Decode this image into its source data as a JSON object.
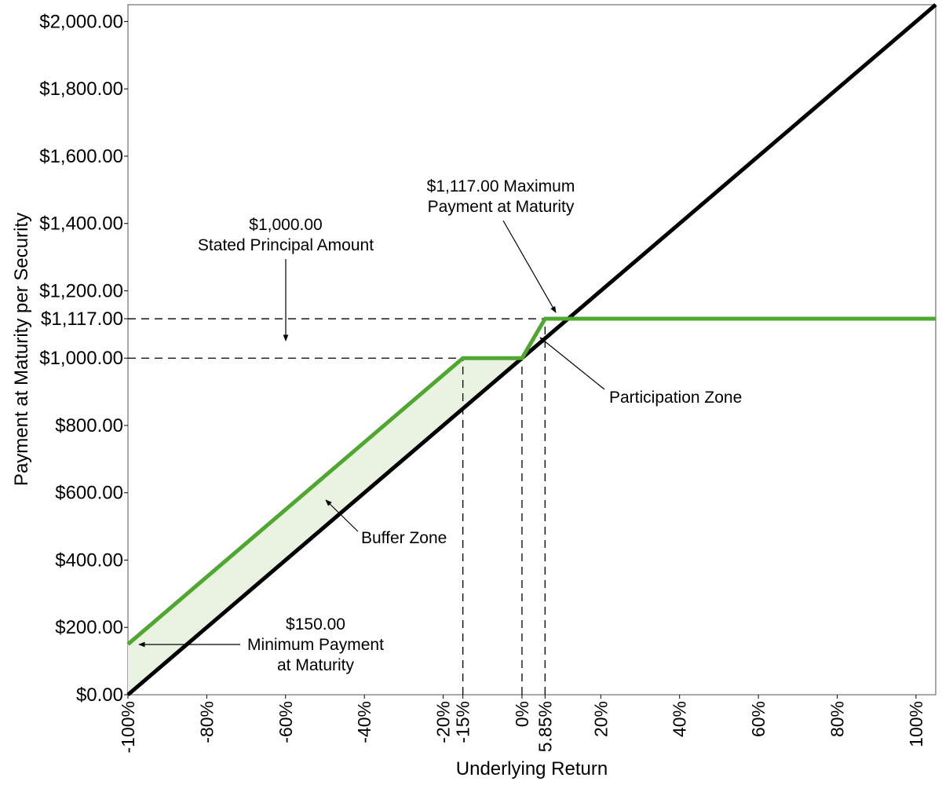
{
  "chart_data": {
    "type": "line",
    "title": "",
    "xlabel": "Underlying Return",
    "ylabel": "Payment at Maturity per Security",
    "xlim": [
      -100,
      105
    ],
    "ylim": [
      0,
      2050
    ],
    "grid": false,
    "legend": "none",
    "x_ticks": [
      {
        "value": -100,
        "label": "-100%"
      },
      {
        "value": -80,
        "label": "-80%"
      },
      {
        "value": -60,
        "label": "-60%"
      },
      {
        "value": -40,
        "label": "-40%"
      },
      {
        "value": -20,
        "label": "-20%"
      },
      {
        "value": -15,
        "label": "-15%"
      },
      {
        "value": 0,
        "label": "0%"
      },
      {
        "value": 5.85,
        "label": "5.85%"
      },
      {
        "value": 20,
        "label": "20%"
      },
      {
        "value": 40,
        "label": "40%"
      },
      {
        "value": 60,
        "label": "60%"
      },
      {
        "value": 80,
        "label": "80%"
      },
      {
        "value": 100,
        "label": "100%"
      }
    ],
    "y_ticks": [
      {
        "value": 0,
        "label": "$0.00"
      },
      {
        "value": 200,
        "label": "$200.00"
      },
      {
        "value": 400,
        "label": "$400.00"
      },
      {
        "value": 600,
        "label": "$600.00"
      },
      {
        "value": 800,
        "label": "$800.00"
      },
      {
        "value": 1000,
        "label": "$1,000.00"
      },
      {
        "value": 1117,
        "label": "$1,117.00"
      },
      {
        "value": 1200,
        "label": "$1,200.00"
      },
      {
        "value": 1400,
        "label": "$1,400.00"
      },
      {
        "value": 1600,
        "label": "$1,600.00"
      },
      {
        "value": 1800,
        "label": "$1,800.00"
      },
      {
        "value": 2000,
        "label": "$2,000.00"
      }
    ],
    "series": [
      {
        "color": "#000000",
        "x": [
          -100,
          105
        ],
        "y": [
          0,
          2050
        ]
      },
      {
        "color": "#4ea72e",
        "x": [
          -100,
          -15,
          0,
          5.85,
          105
        ],
        "y": [
          150,
          1000,
          1000,
          1117,
          1117
        ]
      }
    ],
    "buffer_fill": {
      "color": "#eaf3e2",
      "x": [
        -100,
        -15,
        0
      ],
      "upper": [
        150,
        1000,
        1000
      ],
      "lower": [
        0,
        850,
        1000
      ]
    },
    "reference_lines": {
      "horizontal": [
        1000,
        1117
      ],
      "vertical": [
        -15,
        0,
        5.85
      ]
    },
    "annotations": [
      {
        "name": "stated-principal",
        "lines": [
          "$1,000.00",
          "Stated Principal Amount"
        ]
      },
      {
        "name": "maximum-payment",
        "lines": [
          "$1,117.00 Maximum",
          "Payment at Maturity"
        ]
      },
      {
        "name": "participation-zone",
        "lines": [
          "Participation Zone"
        ]
      },
      {
        "name": "buffer-zone",
        "lines": [
          "Buffer Zone"
        ]
      },
      {
        "name": "minimum-payment",
        "lines": [
          "$150.00",
          "Minimum Payment",
          "at Maturity"
        ]
      }
    ]
  }
}
